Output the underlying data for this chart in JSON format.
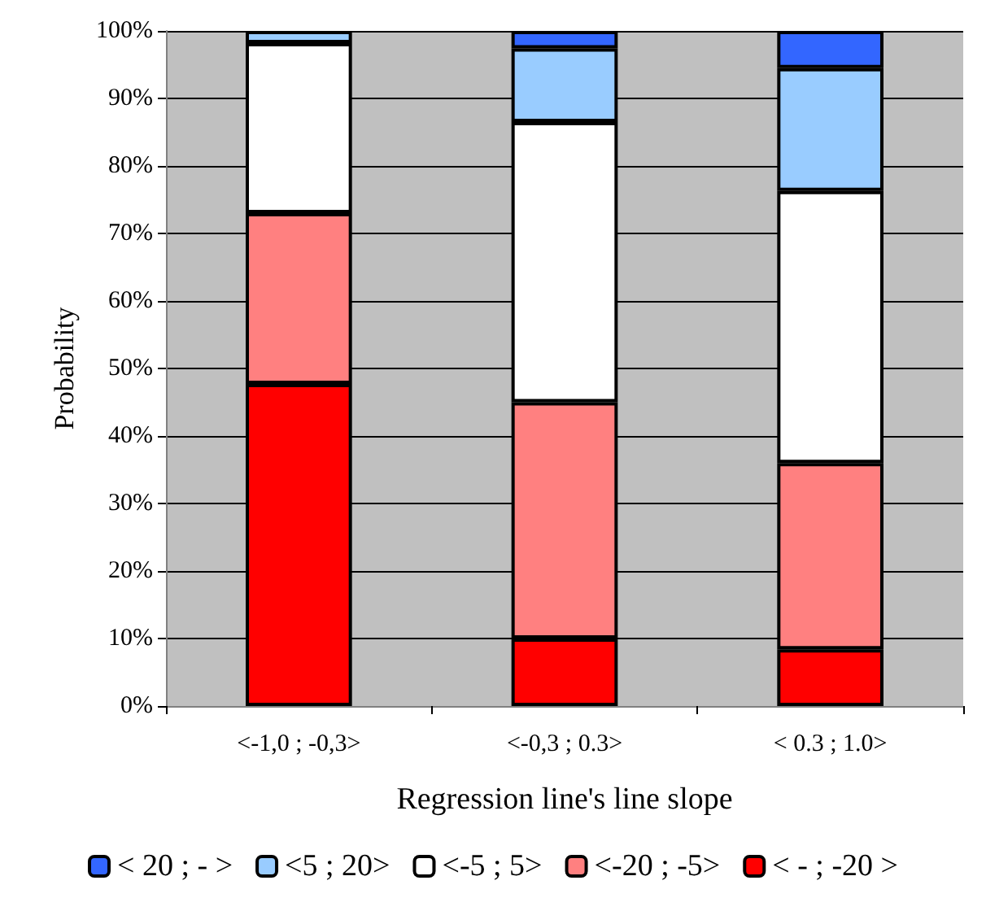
{
  "chart_data": {
    "type": "bar",
    "stacked": true,
    "xlabel": "Regression line's line slope",
    "ylabel": "Probability",
    "categories": [
      "<-1,0 ; -0,3>",
      "<-0,3 ; 0.3>",
      "< 0.3 ; 1.0>"
    ],
    "series": [
      {
        "name": "< - ; -20 >",
        "color": "#ff0000",
        "values": [
          47.7,
          10,
          8.4
        ]
      },
      {
        "name": "<-20 ; -5>",
        "color": "#ff8080",
        "values": [
          25.3,
          35,
          27.6
        ]
      },
      {
        "name": "<-5 ; 5>",
        "color": "#ffffff",
        "values": [
          25.2,
          41.5,
          40.3
        ]
      },
      {
        "name": "<5 ; 20>",
        "color": "#99ccff",
        "values": [
          1.8,
          10.9,
          18.2
        ]
      },
      {
        "name": "< 20 ; - >",
        "color": "#3366ff",
        "values": [
          0,
          2.6,
          5.5
        ]
      }
    ],
    "ylim": [
      0,
      100
    ],
    "yticks": [
      {
        "value": 0,
        "label": "0%"
      },
      {
        "value": 10,
        "label": "10%"
      },
      {
        "value": 20,
        "label": "20%"
      },
      {
        "value": 30,
        "label": "30%"
      },
      {
        "value": 40,
        "label": "40%"
      },
      {
        "value": 50,
        "label": "50%"
      },
      {
        "value": 60,
        "label": "60%"
      },
      {
        "value": 70,
        "label": "70%"
      },
      {
        "value": 80,
        "label": "80%"
      },
      {
        "value": 90,
        "label": "90%"
      },
      {
        "value": 100,
        "label": "100%"
      }
    ],
    "grid": "y",
    "legend": "bottom"
  }
}
